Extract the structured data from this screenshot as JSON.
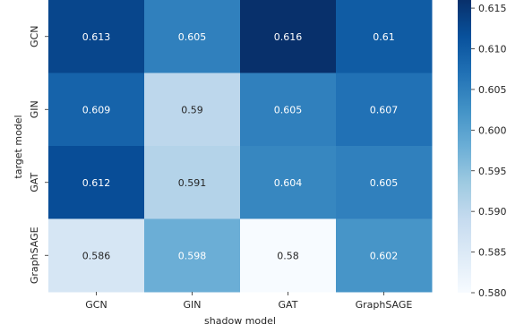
{
  "chart_data": {
    "type": "heatmap",
    "title": "",
    "xlabel": "shadow model",
    "ylabel": "target model",
    "x_categories": [
      "GCN",
      "GIN",
      "GAT",
      "GraphSAGE"
    ],
    "y_categories": [
      "GCN",
      "GIN",
      "GAT",
      "GraphSAGE"
    ],
    "values": [
      [
        0.613,
        0.605,
        0.616,
        0.61
      ],
      [
        0.609,
        0.59,
        0.605,
        0.607
      ],
      [
        0.612,
        0.591,
        0.604,
        0.605
      ],
      [
        0.586,
        0.598,
        0.58,
        0.602
      ]
    ],
    "value_labels": [
      [
        "0.613",
        "0.605",
        "0.616",
        "0.61"
      ],
      [
        "0.609",
        "0.59",
        "0.605",
        "0.607"
      ],
      [
        "0.612",
        "0.591",
        "0.604",
        "0.605"
      ],
      [
        "0.586",
        "0.598",
        "0.58",
        "0.602"
      ]
    ],
    "colormap": "Blues",
    "color_range": [
      0.58,
      0.616
    ],
    "colorbar_ticks": [
      0.58,
      0.585,
      0.59,
      0.595,
      0.6,
      0.605,
      0.61,
      0.615
    ],
    "colorbar_tick_labels": [
      "0.580",
      "0.585",
      "0.590",
      "0.595",
      "0.600",
      "0.605",
      "0.610",
      "0.615"
    ],
    "annotation_colors": {
      "light_text": "#ffffff",
      "dark_text": "#262626"
    },
    "colormap_stops": [
      "#f7fbff",
      "#deebf7",
      "#c6dbef",
      "#9ecae1",
      "#6baed6",
      "#4292c6",
      "#2171b5",
      "#08519c",
      "#08306b"
    ]
  }
}
